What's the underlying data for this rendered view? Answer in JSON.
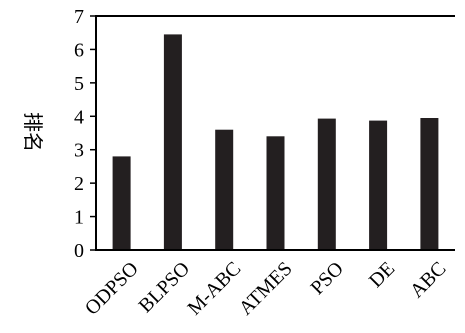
{
  "chart_data": {
    "type": "bar",
    "title": "",
    "xlabel": "",
    "ylabel": "排名",
    "categories": [
      "ODPSO",
      "BLPSO",
      "M-ABC",
      "ATMES",
      "PSO",
      "DE",
      "ABC"
    ],
    "values": [
      2.8,
      6.45,
      3.6,
      3.4,
      3.93,
      3.87,
      3.95
    ],
    "ylim": [
      0,
      7
    ],
    "yticks": [
      0,
      1,
      2,
      3,
      4,
      5,
      6,
      7
    ],
    "grid": false,
    "bar_color": "#231f20",
    "axis_color": "#000000"
  }
}
